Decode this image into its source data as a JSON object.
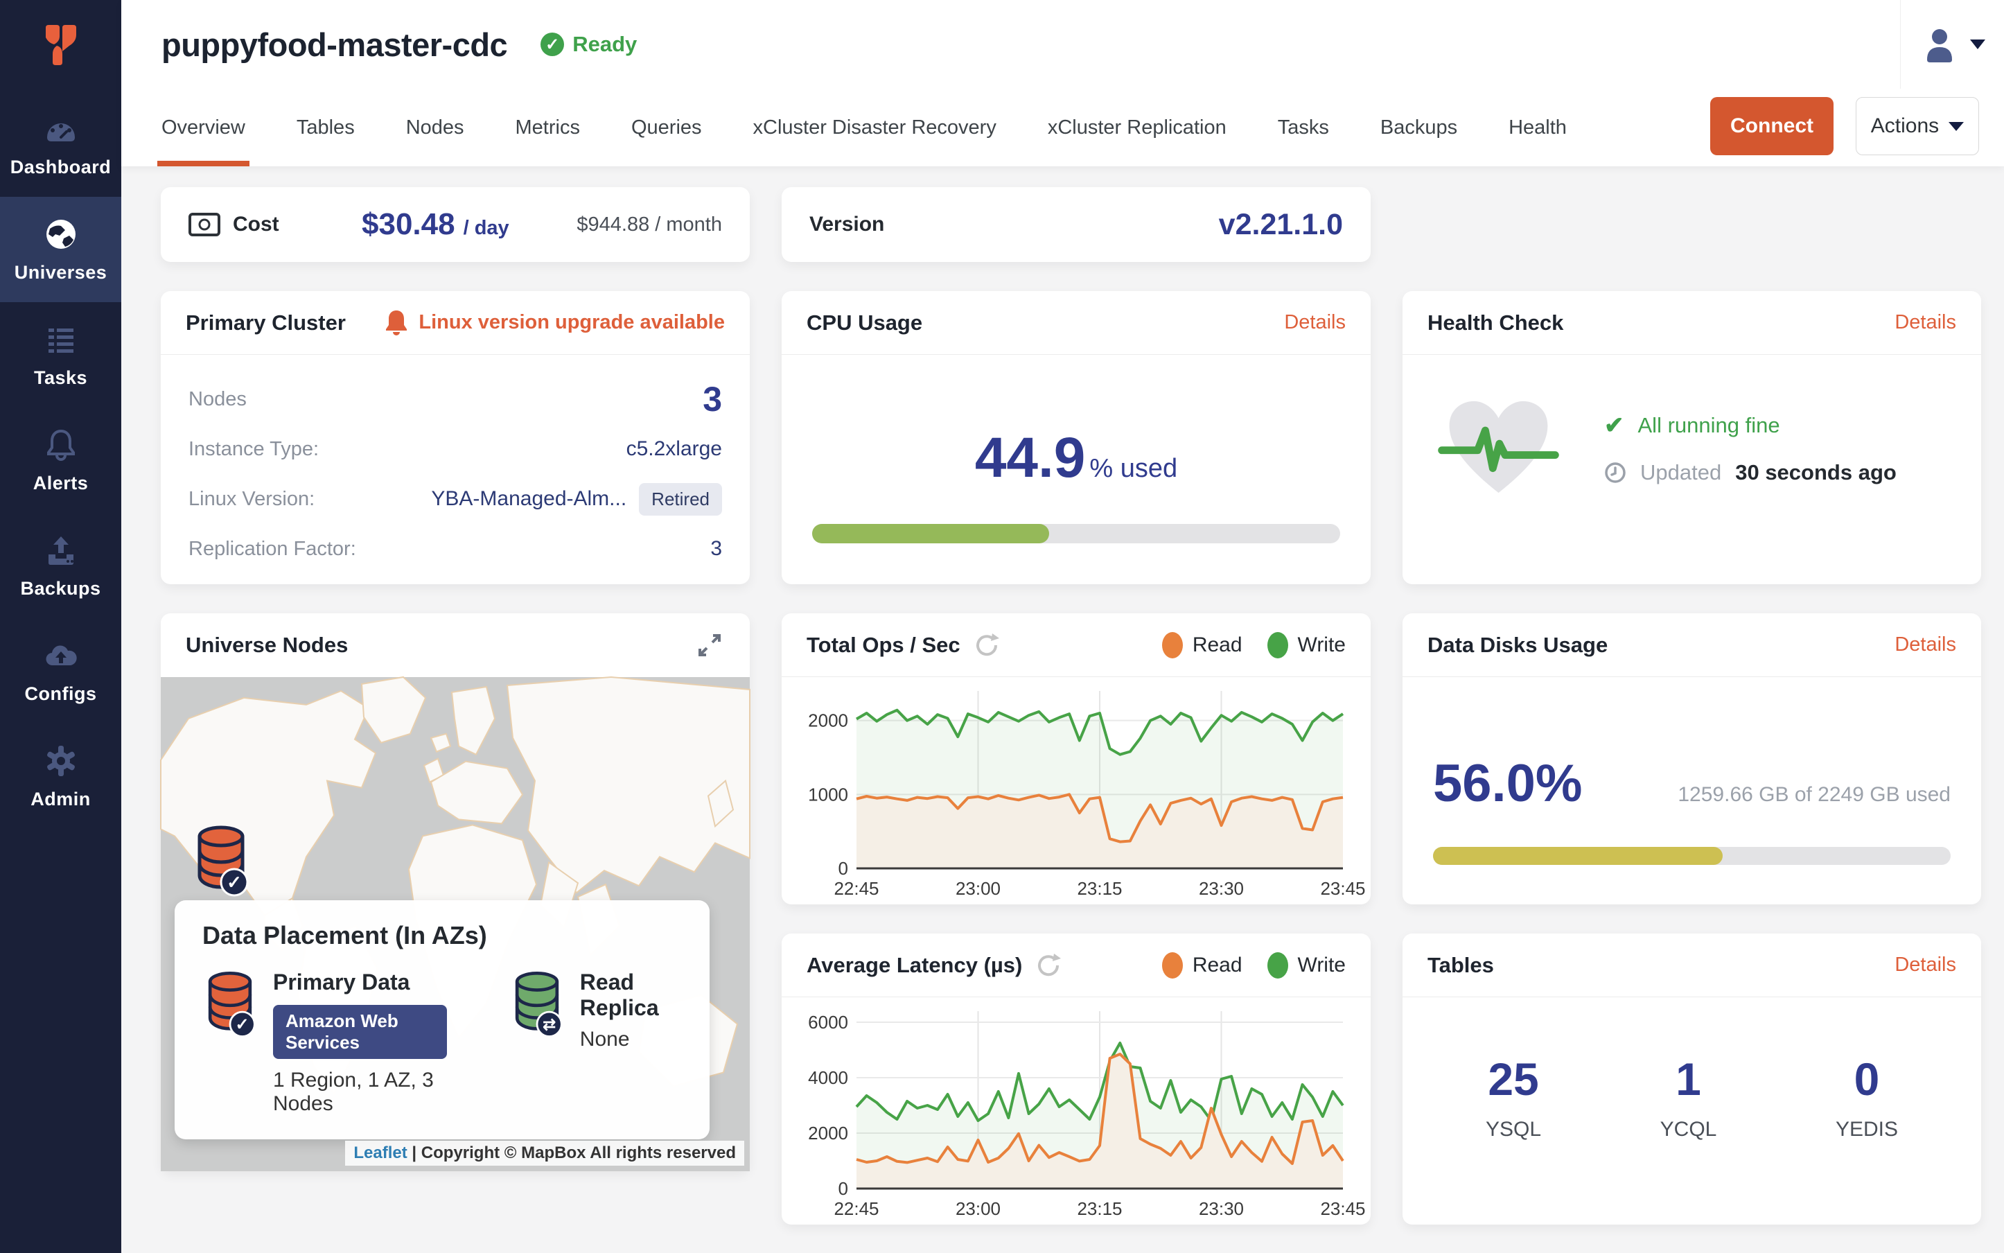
{
  "colors": {
    "accent_orange": "#D4572F",
    "link_orange": "#DE5F3A",
    "navy_value": "#303B8E",
    "green_ok": "#3FA14B",
    "cpu_bar_green": "#95B959",
    "disk_bar_yellow": "#CDC052",
    "sidebar_bg": "#1A2038",
    "sidebar_active_bg": "#2E3A5E",
    "read_orange": "#E8813C",
    "write_green": "#47A347"
  },
  "sidebar": {
    "items": [
      {
        "label": "Dashboard",
        "icon": "dashboard-gauge",
        "active": false
      },
      {
        "label": "Universes",
        "icon": "universes-globe",
        "active": true
      },
      {
        "label": "Tasks",
        "icon": "tasks-list",
        "active": false
      },
      {
        "label": "Alerts",
        "icon": "alerts-bell",
        "active": false
      },
      {
        "label": "Backups",
        "icon": "backups-upload",
        "active": false
      },
      {
        "label": "Configs",
        "icon": "configs-cloud",
        "active": false
      },
      {
        "label": "Admin",
        "icon": "admin-gear",
        "active": false
      }
    ]
  },
  "header": {
    "title": "puppyfood-master-cdc",
    "status": "Ready",
    "tabs": [
      {
        "label": "Overview",
        "active": true
      },
      {
        "label": "Tables",
        "active": false
      },
      {
        "label": "Nodes",
        "active": false
      },
      {
        "label": "Metrics",
        "active": false
      },
      {
        "label": "Queries",
        "active": false
      },
      {
        "label": "xCluster Disaster Recovery",
        "active": false
      },
      {
        "label": "xCluster Replication",
        "active": false
      },
      {
        "label": "Tasks",
        "active": false
      },
      {
        "label": "Backups",
        "active": false
      },
      {
        "label": "Health",
        "active": false
      }
    ],
    "connect_label": "Connect",
    "actions_label": "Actions"
  },
  "cost_card": {
    "label": "Cost",
    "daily_value": "$30.48",
    "daily_unit": "/ day",
    "monthly": "$944.88 / month"
  },
  "version_card": {
    "label": "Version",
    "value": "v2.21.1.0"
  },
  "primary_cluster": {
    "title": "Primary Cluster",
    "alert": "Linux version upgrade available",
    "rows": [
      {
        "label": "Nodes",
        "value": "3",
        "big": true,
        "badge": ""
      },
      {
        "label": "Instance Type:",
        "value": "c5.2xlarge",
        "big": false,
        "badge": ""
      },
      {
        "label": "Linux Version:",
        "value": "YBA-Managed-Alm...",
        "big": false,
        "badge": "Retired"
      },
      {
        "label": "Replication Factor:",
        "value": "3",
        "big": false,
        "badge": ""
      }
    ]
  },
  "cpu_card": {
    "title": "CPU Usage",
    "details": "Details",
    "value": "44.9",
    "unit": "% used",
    "percent": 44.9
  },
  "health_card": {
    "title": "Health Check",
    "details": "Details",
    "status": "All running fine",
    "updated_prefix": "Updated",
    "updated_value": "30 seconds ago"
  },
  "map_card": {
    "title": "Universe Nodes",
    "placement_title": "Data Placement (In AZs)",
    "primary": {
      "label": "Primary Data",
      "provider": "Amazon Web Services",
      "desc": "1 Region, 1 AZ, 3 Nodes"
    },
    "replica": {
      "label": "Read Replica",
      "value": "None"
    },
    "attribution_link": "Leaflet",
    "attribution_rest": "| Copyright © MapBox All rights reserved"
  },
  "disk_card": {
    "title": "Data Disks Usage",
    "details": "Details",
    "percent_label": "56.0%",
    "usage": "1259.66 GB of 2249 GB used",
    "percent": 56
  },
  "tables_card": {
    "title": "Tables",
    "details": "Details",
    "counts": [
      {
        "value": "25",
        "label": "YSQL"
      },
      {
        "value": "1",
        "label": "YCQL"
      },
      {
        "value": "0",
        "label": "YEDIS"
      }
    ]
  },
  "chart_data": [
    {
      "type": "area",
      "title": "Total Ops / Sec",
      "x": "time (22:45–23:45)",
      "x_ticks": [
        "22:45",
        "23:00",
        "23:15",
        "23:30",
        "23:45"
      ],
      "y_ticks": [
        0,
        1000,
        2000
      ],
      "y_max": 2400,
      "legend": [
        {
          "label": "Read",
          "color": "#E8813C"
        },
        {
          "label": "Write",
          "color": "#47A347"
        }
      ],
      "series": [
        {
          "name": "Write",
          "color": "#47A347",
          "fill": "rgba(71,163,71,0.08)",
          "values": [
            2020,
            2100,
            1990,
            2080,
            2140,
            2000,
            2060,
            1950,
            2080,
            2030,
            1780,
            2090,
            2040,
            1980,
            2110,
            2050,
            1990,
            2070,
            2120,
            1980,
            2040,
            2090,
            1730,
            2060,
            2100,
            1620,
            1540,
            1580,
            1760,
            2000,
            2060,
            1950,
            2100,
            2040,
            1720,
            1900,
            2070,
            1990,
            2110,
            2050,
            1980,
            2090,
            2030,
            1950,
            1730,
            1980,
            2100,
            2000,
            2090
          ]
        },
        {
          "name": "Read",
          "color": "#E8813C",
          "fill": "#F5EFE6",
          "values": [
            940,
            975,
            950,
            965,
            940,
            920,
            960,
            945,
            970,
            955,
            810,
            955,
            970,
            940,
            985,
            950,
            925,
            960,
            990,
            945,
            965,
            1000,
            750,
            940,
            960,
            400,
            360,
            370,
            640,
            860,
            600,
            880,
            920,
            950,
            870,
            940,
            580,
            900,
            950,
            970,
            940,
            920,
            960,
            930,
            540,
            520,
            900,
            940,
            960
          ]
        }
      ]
    },
    {
      "type": "area",
      "title": "Average Latency (µs)",
      "x": "time (22:45–23:45)",
      "x_ticks": [
        "22:45",
        "23:00",
        "23:15",
        "23:30",
        "23:45"
      ],
      "y_ticks": [
        0,
        2000,
        4000,
        6000
      ],
      "y_max": 6400,
      "legend": [
        {
          "label": "Read",
          "color": "#E8813C"
        },
        {
          "label": "Write",
          "color": "#47A347"
        }
      ],
      "series": [
        {
          "name": "Write",
          "color": "#47A347",
          "fill": "rgba(71,163,71,0.08)",
          "values": [
            2950,
            3350,
            3100,
            2750,
            2500,
            3150,
            2900,
            3000,
            2850,
            3400,
            2600,
            3100,
            2450,
            2700,
            3500,
            2550,
            4150,
            2700,
            3050,
            3600,
            2950,
            3200,
            2850,
            2500,
            3300,
            4600,
            5250,
            4400,
            4350,
            3150,
            2900,
            3900,
            2750,
            3200,
            2950,
            2450,
            3950,
            4050,
            2700,
            3600,
            3400,
            2600,
            3100,
            2500,
            3750,
            3300,
            2600,
            3500,
            3000
          ]
        },
        {
          "name": "Read",
          "color": "#E8813C",
          "fill": "#F5EFE6",
          "values": [
            1050,
            950,
            1000,
            1150,
            980,
            940,
            1020,
            1100,
            970,
            1500,
            1050,
            990,
            1750,
            950,
            1100,
            1450,
            1980,
            1000,
            1560,
            1120,
            1300,
            1150,
            990,
            1050,
            1550,
            4700,
            4850,
            4500,
            1800,
            1600,
            1450,
            1200,
            1700,
            1100,
            1480,
            2900,
            1950,
            1150,
            1700,
            1300,
            980,
            1850,
            1250,
            900,
            2400,
            2450,
            1200,
            1550,
            1000
          ]
        }
      ]
    }
  ]
}
